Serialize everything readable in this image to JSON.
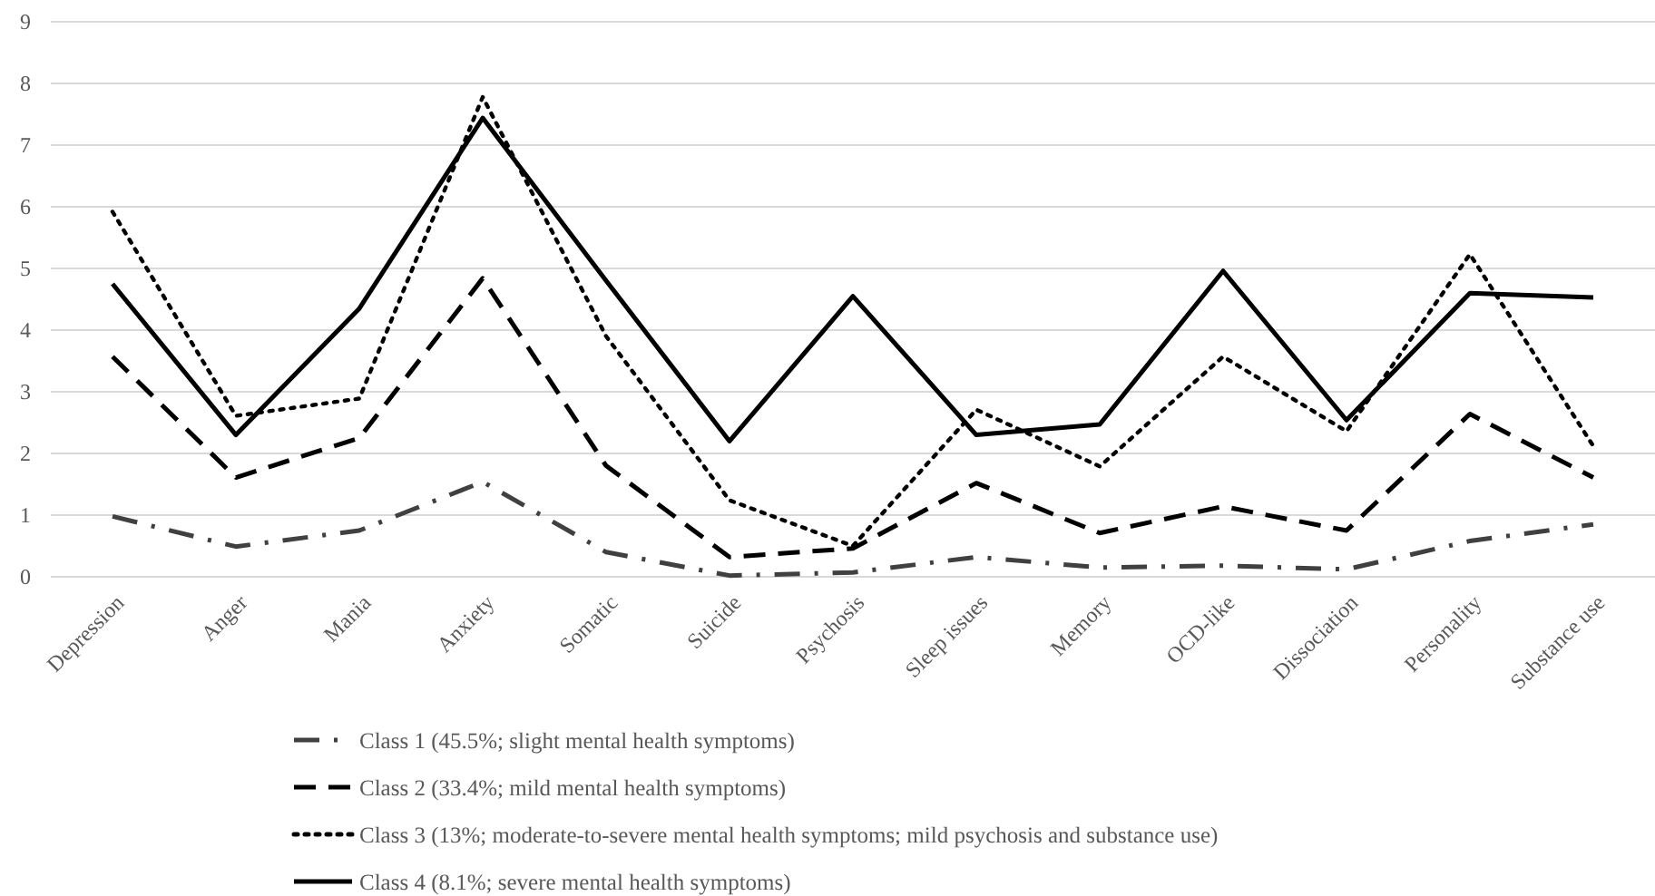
{
  "chart_data": {
    "type": "line",
    "categories": [
      "Depression",
      "Anger",
      "Mania",
      "Anxiety",
      "Somatic",
      "Suicide",
      "Psychosis",
      "Sleep issues",
      "Memory",
      "OCD-like",
      "Dissociation",
      "Personality",
      "Substance use"
    ],
    "ylim": [
      0,
      9
    ],
    "yticks": [
      0,
      1,
      2,
      3,
      4,
      5,
      6,
      7,
      8,
      9
    ],
    "grid": "y",
    "legend": "bottom",
    "marker": "none",
    "series": [
      {
        "name": "Class 1 (45.5%; slight mental health symptoms)",
        "color": "#404040",
        "line_style": "dashdot",
        "values": [
          0.98,
          0.49,
          0.75,
          1.54,
          0.4,
          0.02,
          0.07,
          0.32,
          0.15,
          0.18,
          0.12,
          0.58,
          0.85
        ]
      },
      {
        "name": "Class 2 (33.4%; mild mental health symptoms)",
        "color": "#000000",
        "line_style": "dashed",
        "values": [
          3.57,
          1.61,
          2.25,
          4.84,
          1.8,
          0.32,
          0.46,
          1.52,
          0.71,
          1.14,
          0.75,
          2.64,
          1.61
        ]
      },
      {
        "name": "Class 3 (13%; moderate-to-severe mental health symptoms; mild psychosis and substance use)",
        "color": "#000000",
        "line_style": "dotted",
        "values": [
          5.92,
          2.61,
          2.89,
          7.78,
          3.9,
          1.24,
          0.5,
          2.71,
          1.79,
          3.57,
          2.36,
          5.23,
          2.12
        ]
      },
      {
        "name": "Class 4 (8.1%; severe mental health symptoms)",
        "color": "#000000",
        "line_style": "solid",
        "values": [
          4.75,
          2.3,
          4.35,
          7.44,
          4.8,
          2.2,
          4.55,
          2.3,
          2.47,
          4.96,
          2.54,
          4.6,
          4.53
        ]
      }
    ]
  }
}
